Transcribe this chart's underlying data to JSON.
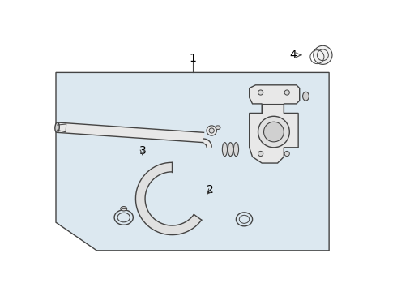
{
  "background_color": "#ffffff",
  "box_bg_color": "#dde8f0",
  "line_color": "#444444",
  "label_color": "#000000",
  "label_1": "1",
  "label_2": "2",
  "label_3": "3",
  "label_4": "4",
  "font_size": 10
}
